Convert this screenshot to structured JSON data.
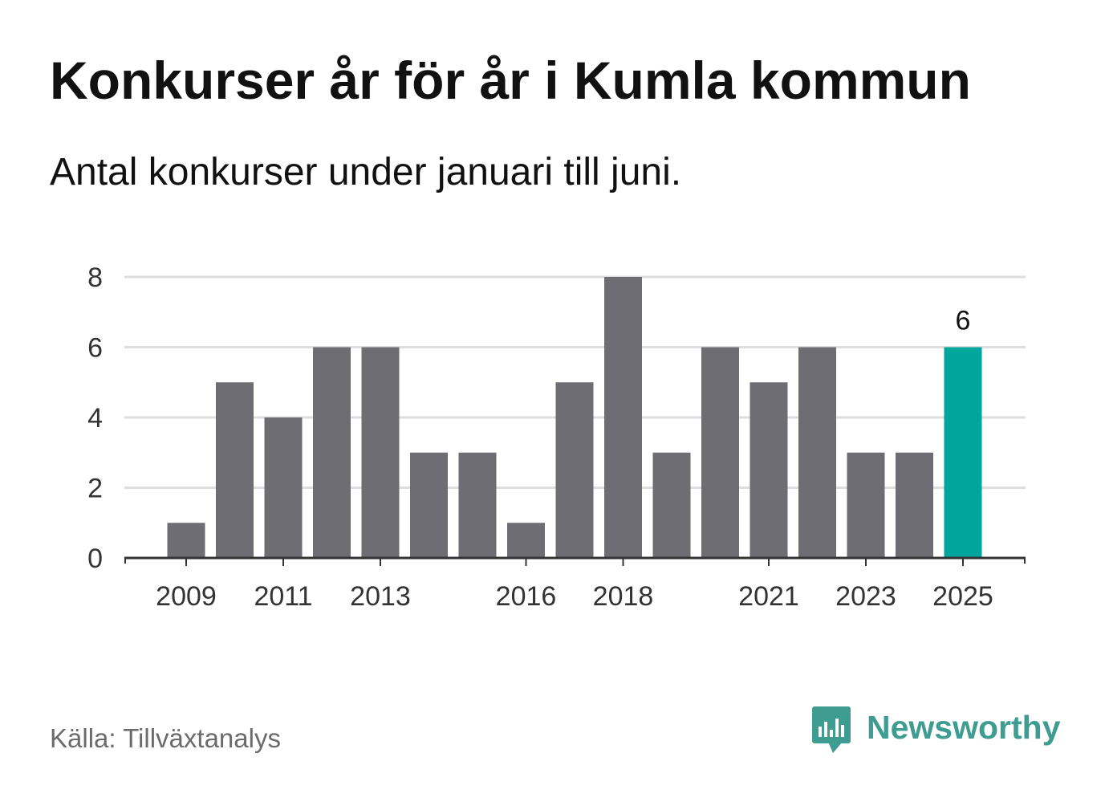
{
  "chart_data": {
    "type": "bar",
    "title": "Konkurser år för år i Kumla kommun",
    "subtitle": "Antal konkurser under januari till juni.",
    "categories": [
      "2009",
      "2010",
      "2011",
      "2012",
      "2013",
      "2014",
      "2015",
      "2016",
      "2017",
      "2018",
      "2019",
      "2020",
      "2021",
      "2022",
      "2023",
      "2024",
      "2025"
    ],
    "values": [
      1,
      5,
      4,
      6,
      6,
      3,
      3,
      1,
      5,
      8,
      3,
      6,
      5,
      6,
      3,
      3,
      6
    ],
    "ylim": [
      0,
      8
    ],
    "yticks": [
      0,
      2,
      4,
      6,
      8
    ],
    "xticks": [
      "2009",
      "2011",
      "2013",
      "2016",
      "2018",
      "2021",
      "2023",
      "2025"
    ],
    "grid": true,
    "legend": "none",
    "highlight": {
      "category": "2025",
      "label": "6"
    },
    "colors": {
      "bar": "#6e6d73",
      "highlight": "#00a59b",
      "grid": "#dedede",
      "axis": "#333333",
      "tick_label": "#333333",
      "data_label": "#111111"
    }
  },
  "footer": {
    "source": "Källa: Tillväxtanalys"
  },
  "brand": {
    "name": "Newsworthy",
    "icon": "newsworthy-logo-icon",
    "color": "#3f9c91"
  }
}
